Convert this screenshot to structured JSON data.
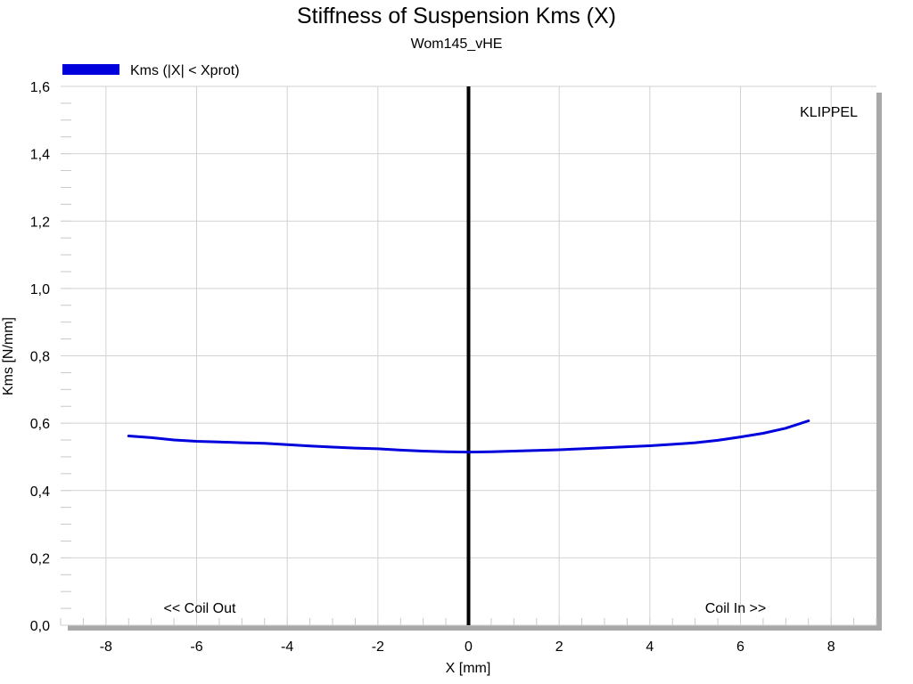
{
  "chart_data": {
    "type": "line",
    "title": "Stiffness of Suspension Kms (X)",
    "subtitle": "Wom145_vHE",
    "xlabel": "X [mm]",
    "ylabel": "Kms [N/mm]",
    "xlim": [
      -9,
      9
    ],
    "ylim": [
      0,
      1.6
    ],
    "xticks": [
      -8,
      -6,
      -4,
      -2,
      0,
      2,
      4,
      6,
      8
    ],
    "yticks": [
      0,
      0.2,
      0.4,
      0.6,
      0.8,
      1.0,
      1.2,
      1.4,
      1.6
    ],
    "ytick_labels": [
      "0,0",
      "0,2",
      "0,4",
      "0,6",
      "0,8",
      "1,0",
      "1,2",
      "1,4",
      "1,6"
    ],
    "grid": true,
    "legend_position": "top-left",
    "series": [
      {
        "name": "Kms (|X| < Xprot)",
        "color": "#0000dd",
        "x": [
          -7.5,
          -7.0,
          -6.5,
          -6.0,
          -5.5,
          -5.0,
          -4.5,
          -4.0,
          -3.5,
          -3.0,
          -2.5,
          -2.0,
          -1.5,
          -1.0,
          -0.5,
          0.0,
          0.5,
          1.0,
          1.5,
          2.0,
          2.5,
          3.0,
          3.5,
          4.0,
          4.5,
          5.0,
          5.5,
          6.0,
          6.5,
          7.0,
          7.5
        ],
        "y": [
          0.562,
          0.557,
          0.55,
          0.546,
          0.544,
          0.542,
          0.54,
          0.536,
          0.532,
          0.529,
          0.526,
          0.524,
          0.52,
          0.517,
          0.515,
          0.514,
          0.515,
          0.517,
          0.519,
          0.521,
          0.524,
          0.527,
          0.53,
          0.533,
          0.537,
          0.542,
          0.549,
          0.559,
          0.57,
          0.585,
          0.607
        ]
      }
    ],
    "reference_line": {
      "x": 0,
      "color": "#000000"
    },
    "annotations": {
      "left": "<< Coil Out",
      "right": "Coil In >>",
      "brand": "KLIPPEL"
    }
  }
}
